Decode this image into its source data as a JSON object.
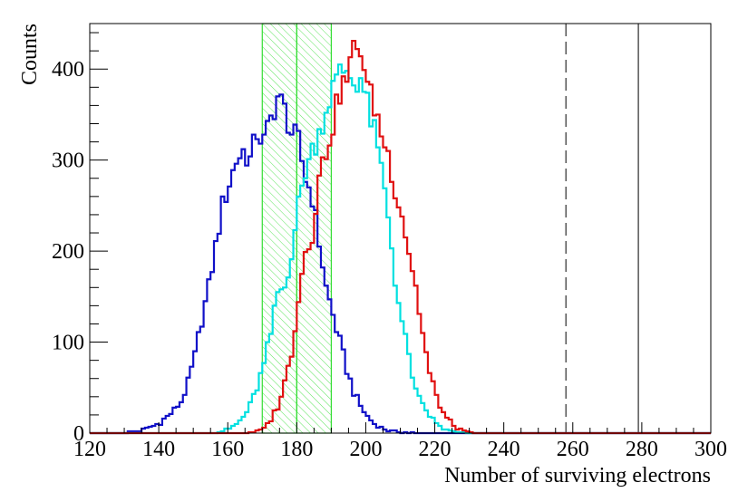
{
  "chart_data": {
    "type": "line",
    "title": "",
    "xlabel": "Number of surviving electrons",
    "ylabel": "Counts",
    "xlim": [
      120,
      300
    ],
    "ylim": [
      0,
      450
    ],
    "x_ticks": [
      120,
      140,
      160,
      180,
      200,
      220,
      240,
      260,
      280,
      300
    ],
    "y_ticks": [
      0,
      100,
      200,
      300,
      400
    ],
    "x_tick_labels": [
      "120",
      "140",
      "160",
      "180",
      "200",
      "220",
      "240",
      "260",
      "280",
      "300"
    ],
    "y_tick_labels": [
      "0",
      "100",
      "200",
      "300",
      "400"
    ],
    "grid": false,
    "legend": "none",
    "bin_width": 1,
    "series": [
      {
        "color": "#1010c8",
        "x": [
          130,
          132,
          134,
          136,
          138,
          140,
          142,
          144,
          146,
          148,
          150,
          152,
          154,
          156,
          158,
          160,
          162,
          164,
          166,
          168,
          170,
          172,
          174,
          176,
          178,
          180,
          182,
          184,
          186,
          188,
          190,
          192,
          194,
          196,
          198,
          200,
          202,
          204,
          206,
          210,
          215
        ],
        "values": [
          1,
          2,
          3,
          5,
          8,
          12,
          18,
          25,
          35,
          55,
          85,
          125,
          160,
          205,
          250,
          275,
          300,
          310,
          300,
          330,
          320,
          345,
          370,
          355,
          330,
          320,
          280,
          260,
          210,
          160,
          130,
          100,
          70,
          45,
          30,
          18,
          10,
          6,
          3,
          1,
          0
        ]
      },
      {
        "color": "#00e0e0",
        "x": [
          155,
          158,
          160,
          162,
          164,
          166,
          168,
          170,
          172,
          174,
          176,
          178,
          180,
          182,
          184,
          186,
          188,
          190,
          192,
          194,
          196,
          198,
          200,
          202,
          204,
          206,
          208,
          210,
          212,
          214,
          216,
          218,
          220,
          222,
          224,
          226,
          230
        ],
        "values": [
          0,
          2,
          5,
          10,
          18,
          30,
          50,
          75,
          110,
          155,
          160,
          200,
          250,
          290,
          310,
          330,
          355,
          380,
          395,
          400,
          385,
          390,
          360,
          330,
          290,
          240,
          170,
          120,
          85,
          45,
          30,
          20,
          10,
          5,
          2,
          1,
          0
        ]
      },
      {
        "color": "#e01010",
        "x": [
          165,
          168,
          170,
          172,
          174,
          176,
          178,
          180,
          182,
          184,
          186,
          188,
          190,
          192,
          194,
          196,
          198,
          200,
          202,
          204,
          206,
          208,
          210,
          212,
          214,
          216,
          218,
          220,
          222,
          224,
          226,
          228,
          232
        ],
        "values": [
          0,
          2,
          5,
          15,
          30,
          55,
          90,
          150,
          200,
          220,
          280,
          310,
          340,
          375,
          390,
          420,
          425,
          380,
          360,
          330,
          305,
          270,
          240,
          200,
          160,
          110,
          65,
          40,
          22,
          12,
          6,
          2,
          0
        ]
      }
    ],
    "markers": {
      "dashed_line_x": 258,
      "solid_line_x": 279,
      "band_1": [
        170,
        180
      ],
      "band_2": [
        180,
        190
      ],
      "band_color": "#33dd33"
    }
  }
}
